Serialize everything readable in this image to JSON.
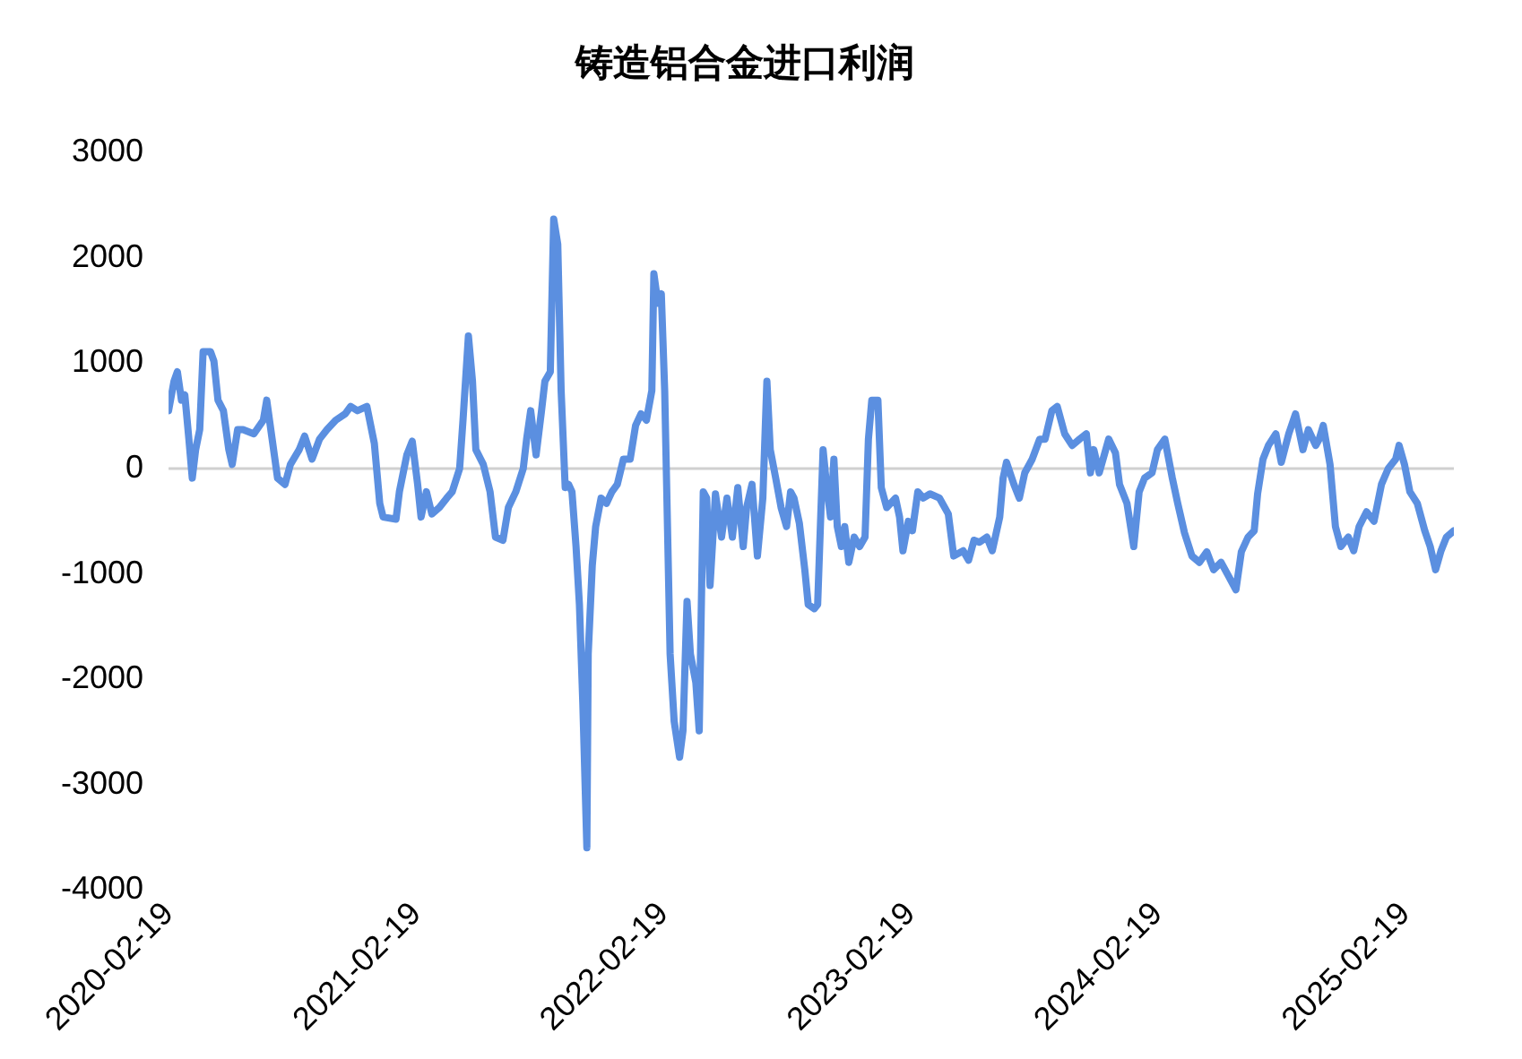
{
  "chart_data": {
    "type": "line",
    "title": "铸造铝合金进口利润",
    "x": [
      "2020-02-19",
      "2020-02-27",
      "2020-03-03",
      "2020-03-09",
      "2020-03-14",
      "2020-03-20",
      "2020-03-25",
      "2020-03-30",
      "2020-04-05",
      "2020-04-10",
      "2020-04-21",
      "2020-04-26",
      "2020-05-02",
      "2020-05-10",
      "2020-05-18",
      "2020-05-23",
      "2020-05-31",
      "2020-06-08",
      "2020-06-24",
      "2020-07-08",
      "2020-07-13",
      "2020-07-21",
      "2020-07-29",
      "2020-08-09",
      "2020-08-17",
      "2020-08-30",
      "2020-09-07",
      "2020-09-18",
      "2020-09-29",
      "2020-10-10",
      "2020-10-23",
      "2020-11-06",
      "2020-11-14",
      "2020-11-24",
      "2020-12-08",
      "2020-12-19",
      "2020-12-27",
      "2021-01-01",
      "2021-01-20",
      "2021-01-25",
      "2021-02-05",
      "2021-02-13",
      "2021-02-21",
      "2021-02-26",
      "2021-03-06",
      "2021-03-14",
      "2021-03-25",
      "2021-04-05",
      "2021-04-13",
      "2021-04-24",
      "2021-04-29",
      "2021-05-07",
      "2021-05-13",
      "2021-05-18",
      "2021-05-29",
      "2021-06-08",
      "2021-06-16",
      "2021-06-27",
      "2021-07-05",
      "2021-07-16",
      "2021-07-27",
      "2021-08-01",
      "2021-08-07",
      "2021-08-15",
      "2021-08-23",
      "2021-08-28",
      "2021-09-05",
      "2021-09-10",
      "2021-09-16",
      "2021-09-21",
      "2021-09-27",
      "2021-10-02",
      "2021-10-07",
      "2021-10-13",
      "2021-10-18",
      "2021-10-23",
      "2021-10-29",
      "2021-10-31",
      "2021-11-06",
      "2021-11-11",
      "2021-11-19",
      "2021-11-27",
      "2021-12-05",
      "2021-12-13",
      "2021-12-22",
      "2022-01-01",
      "2022-01-09",
      "2022-01-17",
      "2022-01-25",
      "2022-02-02",
      "2022-02-05",
      "2022-02-11",
      "2022-02-16",
      "2022-02-21",
      "2022-03-01",
      "2022-03-07",
      "2022-03-15",
      "2022-03-20",
      "2022-03-26",
      "2022-03-31",
      "2022-04-08",
      "2022-04-13",
      "2022-04-19",
      "2022-04-24",
      "2022-04-29",
      "2022-05-07",
      "2022-05-16",
      "2022-05-24",
      "2022-06-01",
      "2022-06-09",
      "2022-06-17",
      "2022-06-22",
      "2022-06-30",
      "2022-07-08",
      "2022-07-16",
      "2022-07-22",
      "2022-07-27",
      "2022-08-04",
      "2022-08-12",
      "2022-08-20",
      "2022-08-26",
      "2022-08-31",
      "2022-09-08",
      "2022-09-16",
      "2022-09-21",
      "2022-09-30",
      "2022-10-05",
      "2022-10-13",
      "2022-10-18",
      "2022-10-24",
      "2022-10-29",
      "2022-11-03",
      "2022-11-09",
      "2022-11-14",
      "2022-11-20",
      "2022-11-28",
      "2022-12-06",
      "2022-12-14",
      "2022-12-19",
      "2022-12-24",
      "2023-01-02",
      "2023-01-07",
      "2023-01-15",
      "2023-01-28",
      "2023-02-03",
      "2023-02-08",
      "2023-02-16",
      "2023-02-22",
      "2023-03-02",
      "2023-03-10",
      "2023-03-20",
      "2023-04-03",
      "2023-04-16",
      "2023-04-24",
      "2023-05-08",
      "2023-05-16",
      "2023-05-24",
      "2023-06-01",
      "2023-06-12",
      "2023-06-20",
      "2023-07-01",
      "2023-07-06",
      "2023-07-11",
      "2023-07-22",
      "2023-07-30",
      "2023-08-07",
      "2023-08-18",
      "2023-08-29",
      "2023-09-06",
      "2023-09-16",
      "2023-09-24",
      "2023-10-05",
      "2023-10-16",
      "2023-10-27",
      "2023-11-06",
      "2023-11-12",
      "2023-11-17",
      "2023-11-25",
      "2023-12-09",
      "2023-12-19",
      "2023-12-25",
      "2024-01-05",
      "2024-01-15",
      "2024-01-23",
      "2024-01-31",
      "2024-02-11",
      "2024-02-19",
      "2024-03-01",
      "2024-03-12",
      "2024-03-20",
      "2024-03-30",
      "2024-04-10",
      "2024-04-21",
      "2024-05-02",
      "2024-05-12",
      "2024-05-23",
      "2024-06-03",
      "2024-06-14",
      "2024-06-22",
      "2024-07-02",
      "2024-07-11",
      "2024-07-16",
      "2024-07-24",
      "2024-08-01",
      "2024-08-12",
      "2024-08-20",
      "2024-08-31",
      "2024-09-10",
      "2024-09-21",
      "2024-09-29",
      "2024-10-10",
      "2024-10-15",
      "2024-10-21",
      "2024-10-31",
      "2024-11-08",
      "2024-11-16",
      "2024-11-27",
      "2024-12-05",
      "2024-12-13",
      "2024-12-24",
      "2025-01-04",
      "2025-01-15",
      "2025-01-25",
      "2025-02-05",
      "2025-02-10",
      "2025-02-18",
      "2025-02-26",
      "2025-03-09",
      "2025-03-20",
      "2025-03-28",
      "2025-04-05",
      "2025-04-13",
      "2025-04-21",
      "2025-05-02"
    ],
    "series": [
      {
        "color": "#5b8fe0",
        "values": [
          550,
          830,
          920,
          650,
          700,
          280,
          -90,
          180,
          370,
          1110,
          1110,
          1020,
          650,
          550,
          180,
          40,
          370,
          370,
          330,
          460,
          650,
          280,
          -90,
          -150,
          40,
          180,
          310,
          90,
          280,
          370,
          460,
          520,
          590,
          550,
          590,
          240,
          -330,
          -460,
          -480,
          -220,
          130,
          260,
          -150,
          -460,
          -220,
          -430,
          -370,
          -280,
          -220,
          0,
          460,
          1260,
          830,
          180,
          40,
          -220,
          -650,
          -680,
          -370,
          -220,
          0,
          280,
          550,
          130,
          550,
          830,
          920,
          2370,
          2130,
          740,
          -180,
          -150,
          -220,
          -740,
          -1290,
          -2220,
          -3600,
          -1760,
          -920,
          -550,
          -280,
          -330,
          -220,
          -150,
          90,
          90,
          410,
          520,
          460,
          740,
          1850,
          1570,
          1660,
          740,
          -1760,
          -2400,
          -2740,
          -2490,
          -1260,
          -1760,
          -2030,
          -2490,
          -220,
          -280,
          -1110,
          -240,
          -650,
          -280,
          -650,
          -180,
          -740,
          -370,
          -150,
          -830,
          -280,
          830,
          180,
          -90,
          -370,
          -550,
          -220,
          -280,
          -520,
          -960,
          -1290,
          -1330,
          -1290,
          180,
          -150,
          -460,
          90,
          -550,
          -740,
          -550,
          -890,
          -650,
          -740,
          -650,
          280,
          650,
          650,
          -180,
          -370,
          -280,
          -460,
          -780,
          -500,
          -590,
          -220,
          -280,
          -240,
          -280,
          -430,
          -830,
          -780,
          -870,
          -680,
          -700,
          -650,
          -780,
          -460,
          -90,
          60,
          -150,
          -280,
          -40,
          90,
          280,
          280,
          550,
          590,
          330,
          220,
          280,
          330,
          -40,
          180,
          -40,
          280,
          150,
          -150,
          -330,
          -740,
          -220,
          -90,
          -40,
          180,
          280,
          -90,
          -330,
          -610,
          -830,
          -890,
          -790,
          -960,
          -890,
          -1020,
          -1150,
          -790,
          -650,
          -590,
          -240,
          90,
          220,
          330,
          60,
          330,
          520,
          180,
          370,
          220,
          280,
          410,
          40,
          -550,
          -740,
          -650,
          -780,
          -550,
          -410,
          -500,
          -150,
          0,
          90,
          220,
          40,
          -220,
          -330,
          -590,
          -740,
          -960,
          -780,
          -650,
          -590
        ]
      }
    ],
    "xlim": [
      "2020-02-19",
      "2025-05-02"
    ],
    "xticks": [
      "2020-02-19",
      "2021-02-19",
      "2022-02-19",
      "2023-02-19",
      "2024-02-19",
      "2025-02-19"
    ],
    "ylim": [
      -4000,
      3000
    ],
    "yticks": [
      -4000,
      -3000,
      -2000,
      -1000,
      0,
      1000,
      2000,
      3000
    ],
    "ref_lines": [
      {
        "axis": "y",
        "value": 0,
        "color": "#d0d0d0"
      }
    ],
    "grid": false,
    "legend": false,
    "marker": "none",
    "line_style": "solid"
  }
}
